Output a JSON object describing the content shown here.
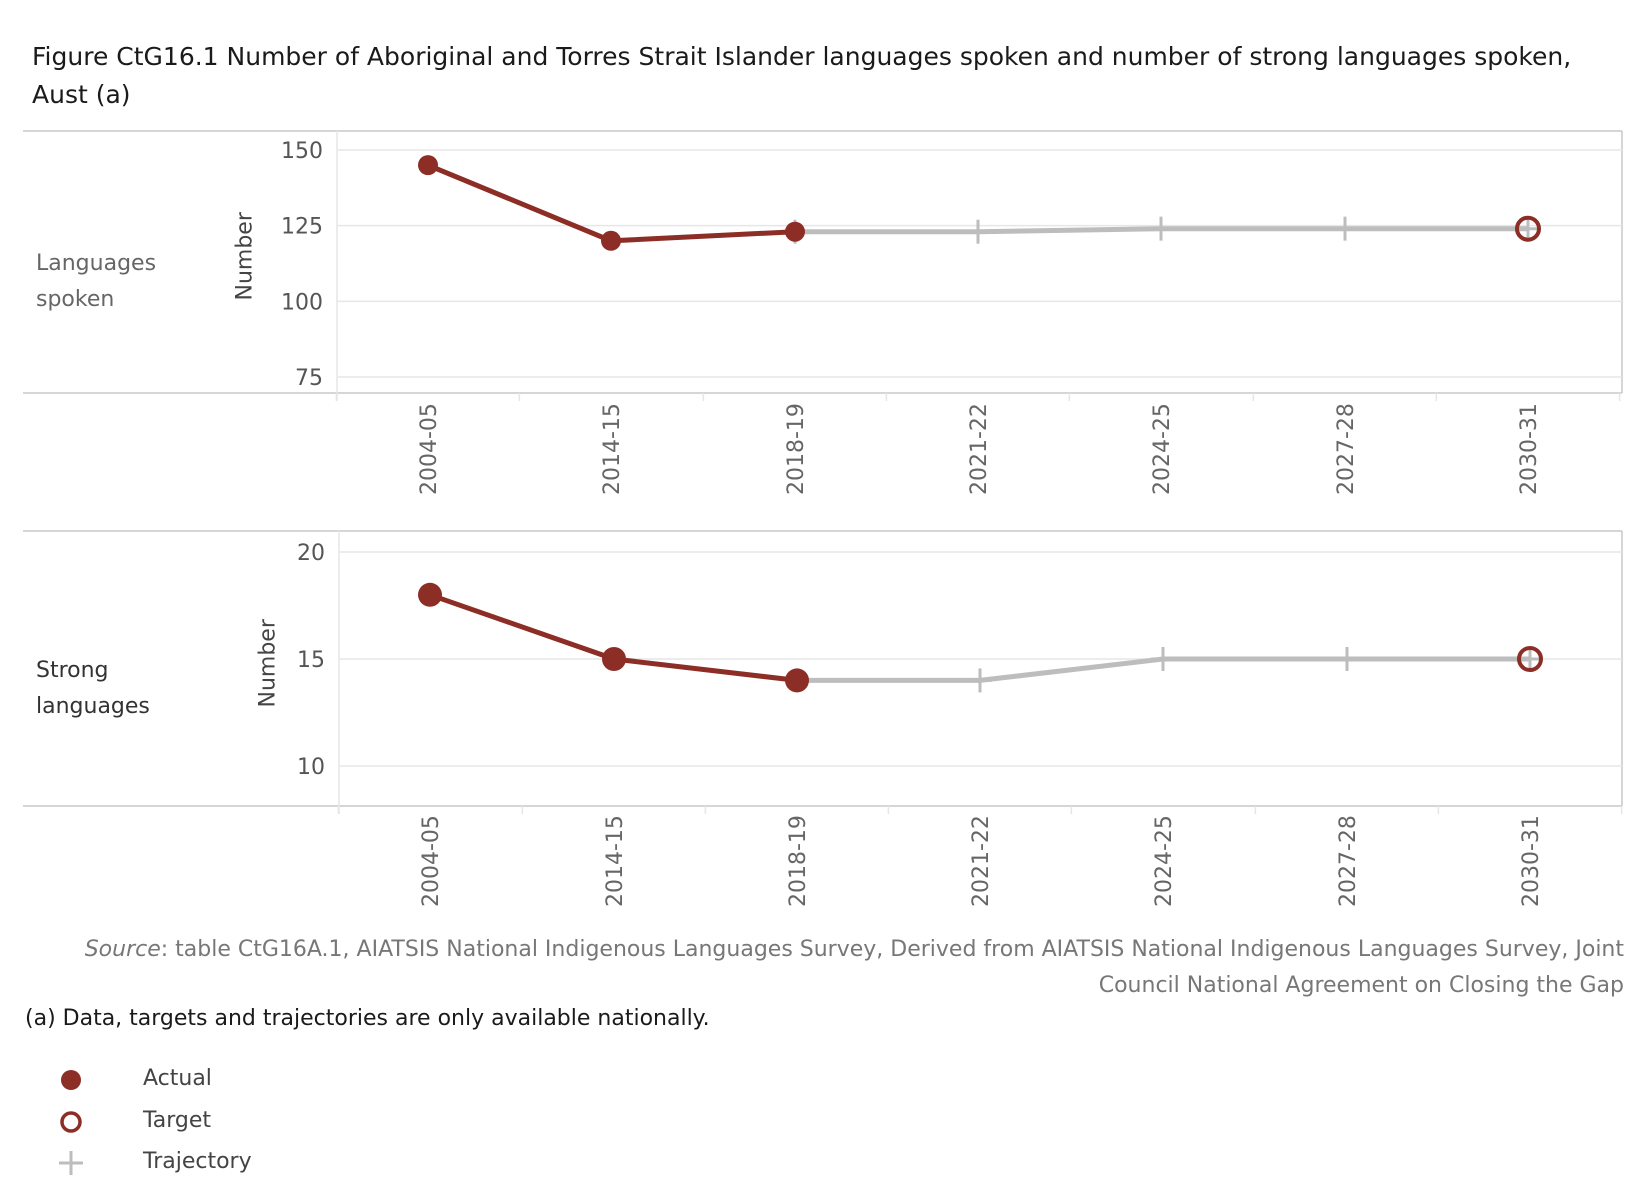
{
  "title": "Figure CtG16.1 Number of Aboriginal and Torres Strait Islander languages spoken and number of strong languages spoken, Aust (a)",
  "colors": {
    "actual": "#8c2d26",
    "trajectory": "#bdbdbd",
    "grid": "#e6e6e6",
    "frame": "#c8c8c8"
  },
  "chart_data": [
    {
      "type": "line",
      "row_label": "Languages spoken",
      "ylabel": "Number",
      "ylim": [
        70,
        150
      ],
      "yticks": [
        75,
        100,
        125,
        150
      ],
      "categories": [
        "2004-05",
        "2014-15",
        "2018-19",
        "2021-22",
        "2024-25",
        "2027-28",
        "2030-31"
      ],
      "actual": {
        "name": "Actual",
        "x": [
          "2004-05",
          "2014-15",
          "2018-19"
        ],
        "values": [
          145,
          120,
          123
        ]
      },
      "trajectory": {
        "name": "Trajectory",
        "x": [
          "2018-19",
          "2021-22",
          "2024-25",
          "2027-28",
          "2030-31"
        ],
        "values": [
          123,
          123,
          124,
          124,
          124
        ]
      },
      "target": {
        "name": "Target",
        "x": "2030-31",
        "value": 124
      },
      "grid": true
    },
    {
      "type": "line",
      "row_label": "Strong languages",
      "ylabel": "Number",
      "ylim": [
        8,
        20
      ],
      "yticks": [
        10,
        15,
        20
      ],
      "categories": [
        "2004-05",
        "2014-15",
        "2018-19",
        "2021-22",
        "2024-25",
        "2027-28",
        "2030-31"
      ],
      "actual": {
        "name": "Actual",
        "x": [
          "2004-05",
          "2014-15",
          "2018-19"
        ],
        "values": [
          18,
          15,
          14
        ]
      },
      "trajectory": {
        "name": "Trajectory",
        "x": [
          "2018-19",
          "2021-22",
          "2024-25",
          "2027-28",
          "2030-31"
        ],
        "values": [
          14,
          14,
          15,
          15,
          15
        ]
      },
      "target": {
        "name": "Target",
        "x": "2030-31",
        "value": 15
      },
      "grid": true
    }
  ],
  "source": {
    "label": "Source",
    "text": ": table CtG16A.1, AIATSIS National Indigenous Languages Survey, Derived from AIATSIS National Indigenous Languages Survey, Joint Council National Agreement on Closing the Gap"
  },
  "note": "(a) Data, targets and trajectories are only available nationally.",
  "legend": [
    {
      "label": "Actual",
      "icon": "filled-circle-icon"
    },
    {
      "label": "Target",
      "icon": "open-circle-icon"
    },
    {
      "label": "Trajectory",
      "icon": "plus-icon"
    }
  ]
}
